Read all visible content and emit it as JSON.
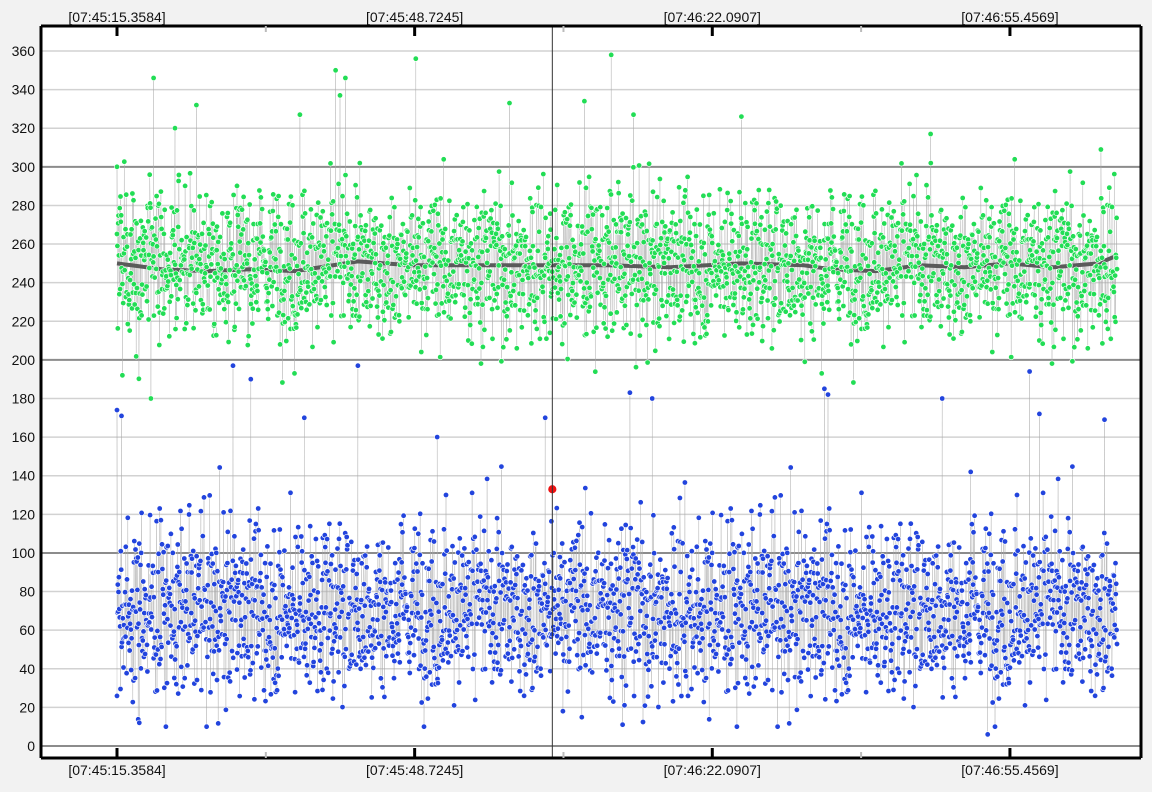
{
  "chart_data": {
    "type": "scatter",
    "title": "",
    "xlabel": "",
    "ylabel": "",
    "ylim": [
      0,
      370
    ],
    "y_ticks": [
      0,
      20,
      40,
      60,
      80,
      100,
      120,
      140,
      160,
      180,
      200,
      220,
      240,
      260,
      280,
      300,
      320,
      340,
      360
    ],
    "x_ticks": [
      "[07:45:15.3584]",
      "[07:45:48.7245]",
      "[07:46:22.0907]",
      "[07:46:55.4569]"
    ],
    "x_ticks_top": [
      "[07:45:15.3584]",
      "[07:45:48.7245]",
      "[07:46:22.0907]",
      "[07:46:55.4569]"
    ],
    "x_range": [
      "[07:45:15.3584]",
      "[07:47:24.2]"
    ],
    "x_ticks_seconds_from_start": [
      0,
      33.3661,
      66.7323,
      100.0985
    ],
    "x_end_seconds_from_start": 112.1,
    "cursor_seconds_from_start": 48.8,
    "grid": true,
    "major_gridlines": [
      0,
      100,
      200,
      300
    ],
    "samples_per_series": 2600,
    "series": [
      {
        "name": "",
        "color": "#22dd55",
        "style": "points-with-lines",
        "center": 249,
        "spread_typical": [
          215,
          285
        ],
        "range": [
          178,
          358
        ],
        "sample_points": [
          [
            0,
            300
          ],
          [
            4.1,
            346
          ],
          [
            6.5,
            320
          ],
          [
            8.9,
            332
          ],
          [
            20.5,
            327
          ],
          [
            24.5,
            350
          ],
          [
            25.0,
            337
          ],
          [
            25.6,
            346
          ],
          [
            33.5,
            356
          ],
          [
            44.0,
            333
          ],
          [
            52.4,
            334
          ],
          [
            55.4,
            358
          ],
          [
            57.9,
            327
          ],
          [
            70.0,
            326
          ],
          [
            91.2,
            317
          ],
          [
            110.3,
            309
          ],
          [
            3.8,
            180
          ],
          [
            0.6,
            192
          ],
          [
            19.9,
            193
          ],
          [
            77.1,
            199
          ],
          [
            79.0,
            193
          ]
        ],
        "trend": {
          "name": "",
          "color": "#5a5a5a",
          "x": [
            0,
            5,
            10,
            15,
            20,
            27,
            33,
            40,
            48,
            55,
            62,
            70,
            77,
            80,
            85,
            90,
            95,
            100,
            105,
            110,
            112.1
          ],
          "y": [
            250,
            247,
            246,
            247,
            246,
            251,
            249,
            249,
            249,
            249,
            248,
            250,
            249,
            247,
            246,
            249,
            248,
            250,
            248,
            250,
            254
          ]
        }
      },
      {
        "name": "",
        "color": "#2244dd",
        "style": "points-with-lines",
        "center": 70,
        "spread_typical": [
          25,
          120
        ],
        "range": [
          6,
          198
        ],
        "sample_points": [
          [
            0,
            174
          ],
          [
            0.5,
            171
          ],
          [
            2.5,
            12
          ],
          [
            13.0,
            197
          ],
          [
            15.0,
            190
          ],
          [
            21.0,
            170
          ],
          [
            27.0,
            197
          ],
          [
            35.9,
            160
          ],
          [
            48.0,
            170
          ],
          [
            57.5,
            183
          ],
          [
            60.0,
            180
          ],
          [
            79.3,
            185
          ],
          [
            79.7,
            182
          ],
          [
            92.5,
            180
          ],
          [
            95.7,
            142
          ],
          [
            97.6,
            6
          ],
          [
            102.3,
            194
          ],
          [
            103.4,
            172
          ],
          [
            110.7,
            169
          ]
        ]
      },
      {
        "name": "",
        "color": "#ee1111",
        "style": "point",
        "points": [
          [
            48.8,
            133
          ]
        ]
      }
    ]
  }
}
